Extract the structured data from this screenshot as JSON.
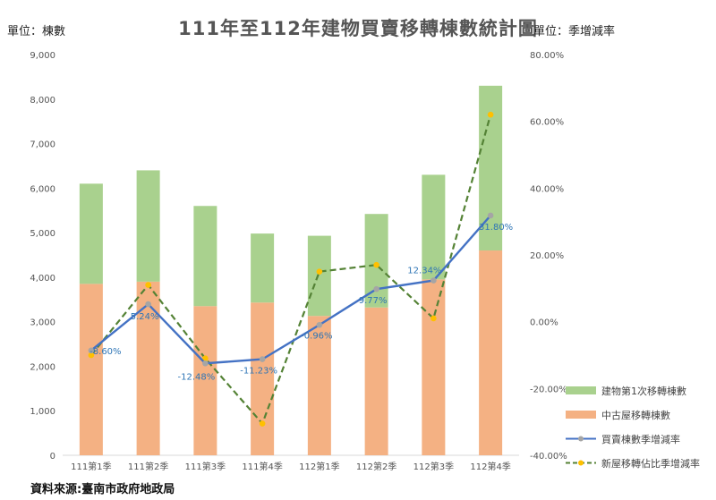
{
  "title": "111年至112年建物買賣移轉棟數統計圖",
  "left_unit": "單位：棟數",
  "right_unit": "單位：季增減率",
  "source": "資料來源:臺南市政府地政局",
  "colors": {
    "new_bar": "#a9d18e",
    "used_bar": "#f4b183",
    "total_line": "#4472c4",
    "total_marker": "#a5a5a5",
    "new_share_line": "#548235",
    "new_share_marker": "#ffc000",
    "label": "#2e75b6"
  },
  "chart_data": {
    "type": "bar",
    "categories": [
      "111第1季",
      "111第2季",
      "111第3季",
      "111第4季",
      "112第1季",
      "112第2季",
      "112第3季",
      "112第4季"
    ],
    "y_left": {
      "min": 0,
      "max": 9000,
      "step": 1000,
      "ticks": [
        "0",
        "1,000",
        "2,000",
        "3,000",
        "4,000",
        "5,000",
        "6,000",
        "7,000",
        "8,000",
        "9,000"
      ]
    },
    "y_right": {
      "min": -40,
      "max": 80,
      "step": 20,
      "ticks": [
        "-40.00%",
        "-20.00%",
        "0.00%",
        "20.00%",
        "40.00%",
        "60.00%",
        "80.00%"
      ]
    },
    "series": [
      {
        "name": "建物第1次移轉棟數",
        "kind": "stacked-bar",
        "axis": "left",
        "values": [
          2250,
          2500,
          2250,
          1550,
          1800,
          2100,
          2350,
          3700
        ]
      },
      {
        "name": "中古屋移轉棟數",
        "kind": "stacked-bar",
        "axis": "left",
        "values": [
          3850,
          3900,
          3350,
          3430,
          3130,
          3320,
          3950,
          4600
        ]
      },
      {
        "name": "買賣棟數季增減率",
        "kind": "line",
        "axis": "right",
        "values": [
          -8.6,
          5.24,
          -12.48,
          -11.23,
          -0.96,
          9.77,
          12.34,
          31.8
        ],
        "labels": [
          "-8.60%",
          "5.24%",
          "-12.48%",
          "-11.23%",
          "-0.96%",
          "9.77%",
          "12.34%",
          "31.80%"
        ]
      },
      {
        "name": "新屋移轉佔比季增減率",
        "kind": "dashed-line",
        "axis": "right",
        "values": [
          -10,
          11,
          -11,
          -30.5,
          15,
          17,
          1,
          62
        ]
      }
    ]
  }
}
